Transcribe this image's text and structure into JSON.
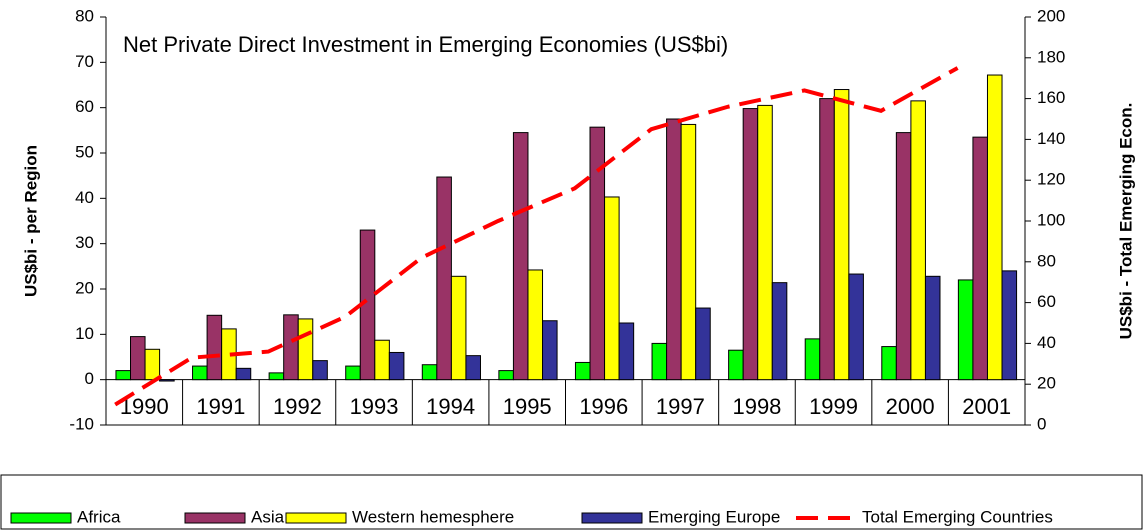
{
  "chart_data": {
    "type": "bar",
    "title": "Net Private Direct Investment in Emerging Economies (US$bi)",
    "ylabel": "US$bi - per Region",
    "y2label": "US$bi - Total Emerging Econ.",
    "categories": [
      "1990",
      "1991",
      "1992",
      "1993",
      "1994",
      "1995",
      "1996",
      "1997",
      "1998",
      "1999",
      "2000",
      "2001"
    ],
    "series": [
      {
        "name": "Africa",
        "color": "#00ff00",
        "values": [
          2,
          3,
          1.5,
          3,
          3.3,
          2,
          3.8,
          8,
          6.5,
          9,
          7.3,
          22
        ]
      },
      {
        "name": "Asia",
        "color": "#993366",
        "values": [
          9.5,
          14.2,
          14.3,
          33,
          44.7,
          54.5,
          55.7,
          57.5,
          59.8,
          62,
          54.5,
          53.5
        ]
      },
      {
        "name": "Western hemesphere",
        "color": "#ffff00",
        "values": [
          6.7,
          11.2,
          13.4,
          8.7,
          22.8,
          24.2,
          40.3,
          56.3,
          60.5,
          64,
          61.5,
          67.2
        ]
      },
      {
        "name": "Emerging Europe",
        "color": "#333399",
        "values": [
          -0.3,
          2.5,
          4.2,
          6,
          5.3,
          13,
          12.5,
          15.8,
          21.4,
          23.3,
          22.8,
          24
        ]
      },
      {
        "name": "Total Emerging Countries",
        "color": "#ff0000",
        "type": "line",
        "axis": "y2",
        "values": [
          10,
          33,
          36,
          53,
          82,
          100,
          116,
          145,
          156,
          164,
          154,
          175
        ]
      }
    ],
    "ylim": [
      -10,
      80
    ],
    "yticks": [
      -10,
      0,
      10,
      20,
      30,
      40,
      50,
      60,
      70,
      80
    ],
    "y2lim": [
      0,
      200
    ],
    "y2ticks": [
      0,
      20,
      40,
      60,
      80,
      100,
      120,
      140,
      160,
      180,
      200
    ],
    "legend": "bottom"
  }
}
